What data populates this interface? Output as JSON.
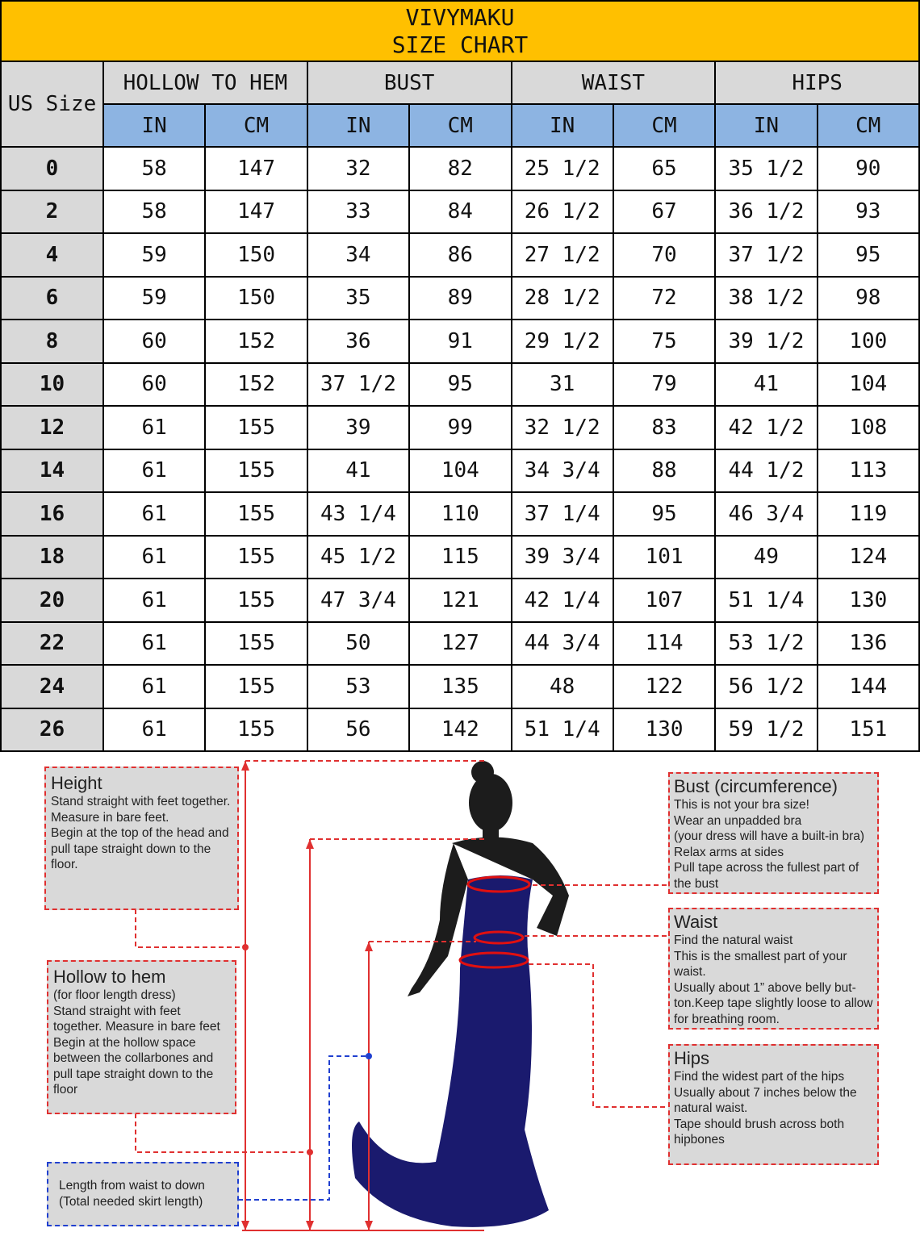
{
  "title": {
    "brand": "VIVYMAKU",
    "subtitle": "SIZE CHART"
  },
  "colors": {
    "title_bg": "#FFC000",
    "header_bg": "#D9D9D9",
    "unit_bg": "#8DB4E2",
    "measure_line": "#e03030",
    "skirt_line": "#2040d0",
    "dress": "#1a1a6e"
  },
  "table": {
    "size_header": "US Size",
    "groups": [
      "HOLLOW TO HEM",
      "BUST",
      "WAIST",
      "HIPS"
    ],
    "units": [
      "IN",
      "CM",
      "IN",
      "CM",
      "IN",
      "CM",
      "IN",
      "CM"
    ],
    "rows": [
      [
        "0",
        "58",
        "147",
        "32",
        "82",
        "25 1/2",
        "65",
        "35 1/2",
        "90"
      ],
      [
        "2",
        "58",
        "147",
        "33",
        "84",
        "26 1/2",
        "67",
        "36 1/2",
        "93"
      ],
      [
        "4",
        "59",
        "150",
        "34",
        "86",
        "27 1/2",
        "70",
        "37 1/2",
        "95"
      ],
      [
        "6",
        "59",
        "150",
        "35",
        "89",
        "28 1/2",
        "72",
        "38 1/2",
        "98"
      ],
      [
        "8",
        "60",
        "152",
        "36",
        "91",
        "29 1/2",
        "75",
        "39 1/2",
        "100"
      ],
      [
        "10",
        "60",
        "152",
        "37 1/2",
        "95",
        "31",
        "79",
        "41",
        "104"
      ],
      [
        "12",
        "61",
        "155",
        "39",
        "99",
        "32 1/2",
        "83",
        "42 1/2",
        "108"
      ],
      [
        "14",
        "61",
        "155",
        "41",
        "104",
        "34 3/4",
        "88",
        "44 1/2",
        "113"
      ],
      [
        "16",
        "61",
        "155",
        "43 1/4",
        "110",
        "37 1/4",
        "95",
        "46 3/4",
        "119"
      ],
      [
        "18",
        "61",
        "155",
        "45 1/2",
        "115",
        "39 3/4",
        "101",
        "49",
        "124"
      ],
      [
        "20",
        "61",
        "155",
        "47 3/4",
        "121",
        "42 1/4",
        "107",
        "51 1/4",
        "130"
      ],
      [
        "22",
        "61",
        "155",
        "50",
        "127",
        "44 3/4",
        "114",
        "53 1/2",
        "136"
      ],
      [
        "24",
        "61",
        "155",
        "53",
        "135",
        "48",
        "122",
        "56 1/2",
        "144"
      ],
      [
        "26",
        "61",
        "155",
        "56",
        "142",
        "51 1/4",
        "130",
        "59 1/2",
        "151"
      ]
    ]
  },
  "guide": {
    "height": {
      "title": "Height",
      "text": "Stand straight with feet together.\nMeasure in bare feet.\nBegin at the top of the head and pull tape straight down to the floor."
    },
    "hollow": {
      "title": "Hollow to hem",
      "text": "(for floor length dress)\nStand straight with feet together. Measure in bare feet\nBegin at the hollow space between the collarbones and pull tape straight down to the floor"
    },
    "length": {
      "text": "Length from waist to down\n(Total needed skirt length)"
    },
    "bust": {
      "title": "Bust (circumference)",
      "text": "This is not your bra size!\nWear an unpadded bra\n(your dress will have a built-in bra)\nRelax arms at sides\nPull tape across the fullest part of the bust"
    },
    "waist": {
      "title": "Waist",
      "text": "Find the natural waist\nThis is the smallest part of your waist.\nUsually about 1” above belly but-ton.Keep tape slightly loose to allow for breathing room."
    },
    "hips": {
      "title": "Hips",
      "text": "Find the widest part of the hips\nUsually about 7 inches below the natural waist.\nTape should brush across both hipbones"
    }
  }
}
